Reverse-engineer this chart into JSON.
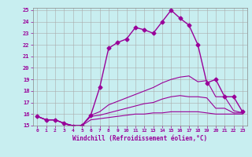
{
  "xlabel": "Windchill (Refroidissement éolien,°C)",
  "background_color": "#c8eef0",
  "grid_color": "#aaaaaa",
  "line_color": "#990099",
  "xlim": [
    -0.5,
    23.5
  ],
  "ylim": [
    15,
    25.2
  ],
  "yticks": [
    15,
    16,
    17,
    18,
    19,
    20,
    21,
    22,
    23,
    24,
    25
  ],
  "xticks": [
    0,
    1,
    2,
    3,
    4,
    5,
    6,
    7,
    8,
    9,
    10,
    11,
    12,
    13,
    14,
    15,
    16,
    17,
    18,
    19,
    20,
    21,
    22,
    23
  ],
  "series": [
    {
      "x": [
        0,
        1,
        2,
        3,
        4,
        5,
        6,
        7,
        8,
        9,
        10,
        11,
        12,
        13,
        14,
        15,
        16,
        17,
        18,
        19,
        20,
        21,
        22,
        23
      ],
      "y": [
        15.8,
        15.5,
        15.5,
        15.2,
        14.9,
        15.0,
        15.9,
        18.3,
        21.7,
        22.2,
        22.5,
        23.5,
        23.3,
        23.0,
        24.0,
        25.0,
        24.3,
        23.7,
        22.0,
        18.7,
        19.0,
        17.5,
        17.5,
        16.2
      ],
      "marker": "D",
      "markersize": 2.5,
      "linewidth": 1.0
    },
    {
      "x": [
        0,
        1,
        2,
        3,
        4,
        5,
        6,
        7,
        8,
        9,
        10,
        11,
        12,
        13,
        14,
        15,
        16,
        17,
        18,
        19,
        20,
        21,
        22,
        23
      ],
      "y": [
        15.8,
        15.5,
        15.5,
        15.2,
        15.0,
        15.0,
        15.9,
        16.2,
        16.8,
        17.1,
        17.4,
        17.7,
        18.0,
        18.3,
        18.7,
        19.0,
        19.2,
        19.3,
        18.8,
        18.9,
        17.5,
        17.5,
        16.3,
        16.1
      ],
      "marker": null,
      "markersize": 0,
      "linewidth": 0.8
    },
    {
      "x": [
        0,
        1,
        2,
        3,
        4,
        5,
        6,
        7,
        8,
        9,
        10,
        11,
        12,
        13,
        14,
        15,
        16,
        17,
        18,
        19,
        20,
        21,
        22,
        23
      ],
      "y": [
        15.8,
        15.5,
        15.5,
        15.2,
        15.0,
        15.0,
        15.8,
        15.9,
        16.1,
        16.3,
        16.5,
        16.7,
        16.9,
        17.0,
        17.3,
        17.5,
        17.6,
        17.5,
        17.5,
        17.4,
        16.5,
        16.5,
        16.1,
        16.1
      ],
      "marker": null,
      "markersize": 0,
      "linewidth": 0.8
    },
    {
      "x": [
        0,
        1,
        2,
        3,
        4,
        5,
        6,
        7,
        8,
        9,
        10,
        11,
        12,
        13,
        14,
        15,
        16,
        17,
        18,
        19,
        20,
        21,
        22,
        23
      ],
      "y": [
        15.8,
        15.5,
        15.5,
        15.2,
        15.0,
        15.0,
        15.5,
        15.6,
        15.7,
        15.8,
        15.9,
        16.0,
        16.0,
        16.1,
        16.1,
        16.2,
        16.2,
        16.2,
        16.2,
        16.1,
        16.0,
        16.0,
        16.0,
        16.0
      ],
      "marker": null,
      "markersize": 0,
      "linewidth": 0.8
    }
  ]
}
